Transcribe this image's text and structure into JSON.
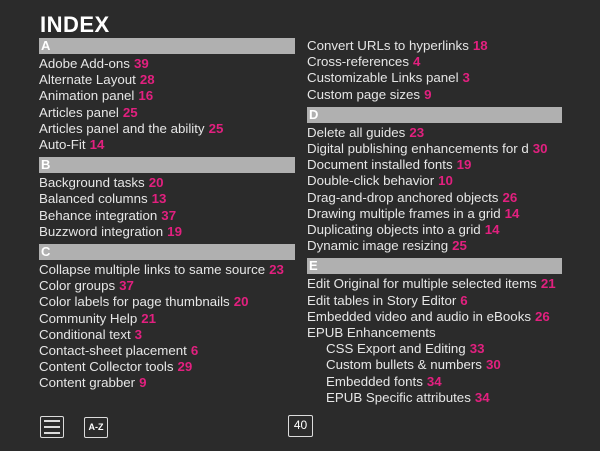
{
  "title": "INDEX",
  "accent_color": "#e2207f",
  "columns": [
    {
      "sections": [
        {
          "letter": "A",
          "entries": [
            {
              "text": "Adobe Add-ons",
              "page": "39"
            },
            {
              "text": "Alternate Layout",
              "page": "28"
            },
            {
              "text": "Animation panel",
              "page": "16"
            },
            {
              "text": "Articles panel",
              "page": "25"
            },
            {
              "text": "Articles panel and the ability",
              "page": "25"
            },
            {
              "text": "Auto-Fit",
              "page": "14"
            }
          ]
        },
        {
          "letter": "B",
          "entries": [
            {
              "text": "Background tasks",
              "page": "20"
            },
            {
              "text": "Balanced columns",
              "page": "13"
            },
            {
              "text": "Behance integration",
              "page": "37"
            },
            {
              "text": "Buzzword integration",
              "page": "19"
            }
          ]
        },
        {
          "letter": "C",
          "entries": [
            {
              "text": "Collapse multiple links to same source",
              "page": "23"
            },
            {
              "text": "Color groups",
              "page": "37"
            },
            {
              "text": "Color labels for page thumbnails",
              "page": "20"
            },
            {
              "text": "Community Help",
              "page": "21"
            },
            {
              "text": "Conditional text",
              "page": "3"
            },
            {
              "text": "Contact-sheet placement",
              "page": "6"
            },
            {
              "text": "Content Collector tools",
              "page": "29"
            },
            {
              "text": "Content grabber",
              "page": "9"
            }
          ]
        }
      ]
    },
    {
      "top_entries": [
        {
          "text": "Convert URLs to hyperlinks",
          "page": "18"
        },
        {
          "text": "Cross-references",
          "page": "4"
        },
        {
          "text": "Customizable Links panel",
          "page": "3"
        },
        {
          "text": "Custom page sizes",
          "page": "9"
        }
      ],
      "sections": [
        {
          "letter": "D",
          "entries": [
            {
              "text": "Delete all guides",
              "page": "23"
            },
            {
              "text": "Digital publishing enhancements for d",
              "page": "30"
            },
            {
              "text": "Document installed fonts",
              "page": "19"
            },
            {
              "text": "Double-click behavior",
              "page": "10"
            },
            {
              "text": "Drag-and-drop anchored objects",
              "page": "26"
            },
            {
              "text": "Drawing multiple frames in a grid",
              "page": "14"
            },
            {
              "text": "Duplicating objects into a grid",
              "page": "14"
            },
            {
              "text": "Dynamic image resizing",
              "page": "25"
            }
          ]
        },
        {
          "letter": "E",
          "entries": [
            {
              "text": "Edit Original for multiple selected items",
              "page": "21"
            },
            {
              "text": "Edit tables in Story Editor",
              "page": "6"
            },
            {
              "text": "Embedded video and audio in eBooks",
              "page": "26"
            },
            {
              "text": "EPUB Enhancements",
              "page": ""
            },
            {
              "text": "CSS Export and Editing",
              "page": "33",
              "sub": true
            },
            {
              "text": "Custom bullets & numbers",
              "page": "30",
              "sub": true
            },
            {
              "text": "Embedded fonts",
              "page": "34",
              "sub": true
            },
            {
              "text": "EPUB Specific attributes",
              "page": "34",
              "sub": true
            }
          ]
        }
      ]
    }
  ],
  "toolbar": {
    "menu_icon": "hamburger-menu-icon",
    "az_label": "A-Z",
    "page_number": "40"
  }
}
